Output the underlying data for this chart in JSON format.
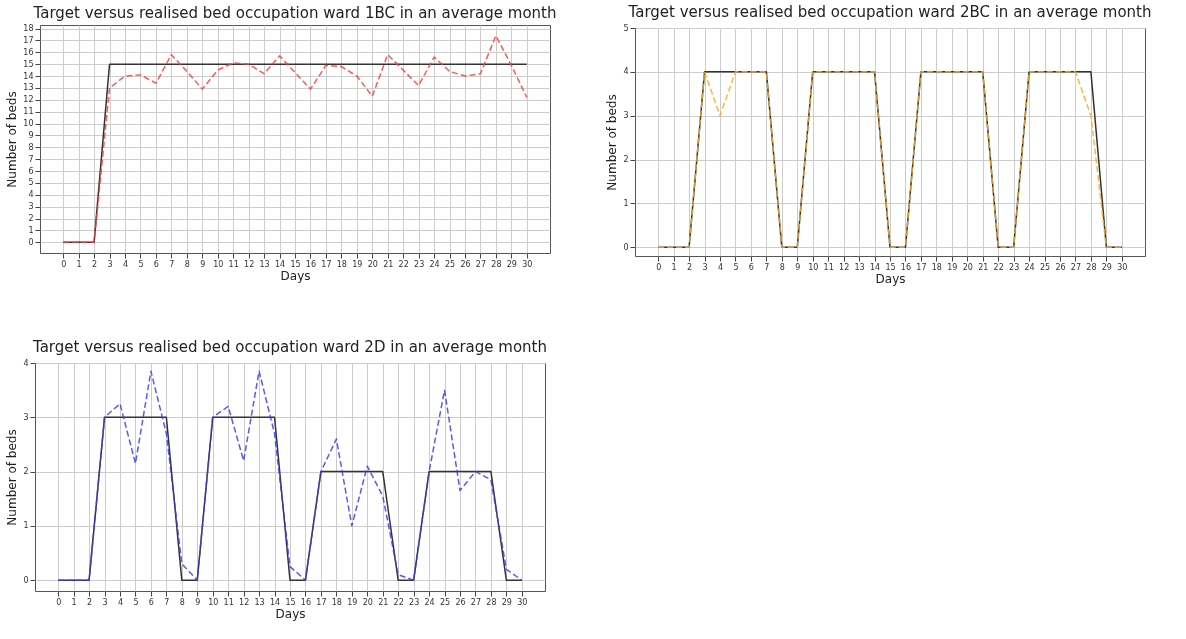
{
  "chart_data": [
    {
      "type": "line",
      "title": "Target versus realised bed occupation ward 1BC in an average month",
      "xlabel": "Days",
      "ylabel": "Number of beds",
      "x": [
        0,
        1,
        2,
        3,
        4,
        5,
        6,
        7,
        8,
        9,
        10,
        11,
        12,
        13,
        14,
        15,
        16,
        17,
        18,
        19,
        20,
        21,
        22,
        23,
        24,
        25,
        26,
        27,
        28,
        29,
        30
      ],
      "series": [
        {
          "color": "#333333",
          "line_style": "solid",
          "values": [
            0,
            0,
            0,
            15,
            15,
            15,
            15,
            15,
            15,
            15,
            15,
            15,
            15,
            15,
            15,
            15,
            15,
            15,
            15,
            15,
            15,
            15,
            15,
            15,
            15,
            15,
            15,
            15,
            15,
            15,
            15
          ]
        },
        {
          "color": "#ff3b3b",
          "line_style": "dashed",
          "values": [
            0,
            0,
            0,
            13.0,
            14.0,
            14.1,
            13.4,
            15.8,
            14.4,
            12.9,
            14.5,
            15.1,
            15.0,
            14.2,
            15.7,
            14.3,
            12.9,
            14.9,
            14.8,
            14.0,
            12.3,
            15.8,
            14.5,
            13.2,
            15.6,
            14.4,
            14.0,
            14.2,
            17.4,
            14.9,
            12.2
          ]
        }
      ],
      "xlim": [
        -1.5,
        31.5
      ],
      "xticks": [
        0,
        1,
        2,
        3,
        4,
        5,
        6,
        7,
        8,
        9,
        10,
        11,
        12,
        13,
        14,
        15,
        16,
        17,
        18,
        19,
        20,
        21,
        22,
        23,
        24,
        25,
        26,
        27,
        28,
        29,
        30
      ],
      "ylim": [
        -0.9,
        18.3
      ],
      "yticks": [
        0,
        1,
        2,
        3,
        4,
        5,
        6,
        7,
        8,
        9,
        10,
        11,
        12,
        13,
        14,
        15,
        16,
        17,
        18
      ],
      "grid": true
    },
    {
      "type": "line",
      "title": "Target versus realised bed occupation ward 2BC in an average month",
      "xlabel": "Days",
      "ylabel": "Number of beds",
      "x": [
        0,
        1,
        2,
        3,
        4,
        5,
        6,
        7,
        8,
        9,
        10,
        11,
        12,
        13,
        14,
        15,
        16,
        17,
        18,
        19,
        20,
        21,
        22,
        23,
        24,
        25,
        26,
        27,
        28,
        29,
        30
      ],
      "series": [
        {
          "color": "#333333",
          "line_style": "solid",
          "values": [
            0,
            0,
            0,
            4,
            4,
            4,
            4,
            4,
            0,
            0,
            4,
            4,
            4,
            4,
            4,
            0,
            0,
            4,
            4,
            4,
            4,
            4,
            0,
            0,
            4,
            4,
            4,
            4,
            4,
            0,
            0
          ]
        },
        {
          "color": "#ffa91f",
          "line_style": "dashed",
          "values": [
            0,
            0,
            0,
            4,
            3,
            4,
            4,
            4,
            0,
            0,
            4,
            4,
            4,
            4,
            4,
            0,
            0,
            4,
            4,
            4,
            4,
            4,
            0,
            0,
            4,
            4,
            4,
            4,
            3,
            0,
            0
          ]
        }
      ],
      "xlim": [
        -1.5,
        31.5
      ],
      "xticks": [
        0,
        1,
        2,
        3,
        4,
        5,
        6,
        7,
        8,
        9,
        10,
        11,
        12,
        13,
        14,
        15,
        16,
        17,
        18,
        19,
        20,
        21,
        22,
        23,
        24,
        25,
        26,
        27,
        28,
        29,
        30
      ],
      "ylim": [
        -0.2,
        5
      ],
      "yticks": [
        0,
        1,
        2,
        3,
        4,
        5
      ],
      "grid": true
    },
    {
      "type": "line",
      "title": "Target versus realised bed occupation ward 2D in an average month",
      "xlabel": "Days",
      "ylabel": "Number of beds",
      "x": [
        0,
        1,
        2,
        3,
        4,
        5,
        6,
        7,
        8,
        9,
        10,
        11,
        12,
        13,
        14,
        15,
        16,
        17,
        18,
        19,
        20,
        21,
        22,
        23,
        24,
        25,
        26,
        27,
        28,
        29,
        30
      ],
      "series": [
        {
          "color": "#333333",
          "line_style": "solid",
          "values": [
            0,
            0,
            0,
            3,
            3,
            3,
            3,
            3,
            0,
            0,
            3,
            3,
            3,
            3,
            3,
            0,
            0,
            2,
            2,
            2,
            2,
            2,
            0,
            0,
            2,
            2,
            2,
            2,
            2,
            0,
            0
          ]
        },
        {
          "color": "#3b3bff",
          "line_style": "dashed",
          "values": [
            0,
            0,
            0,
            3.0,
            3.25,
            2.15,
            3.85,
            2.7,
            0.3,
            0,
            3.0,
            3.2,
            2.2,
            3.85,
            2.7,
            0.25,
            0,
            2.0,
            2.6,
            1.0,
            2.1,
            1.55,
            0.1,
            0,
            2.0,
            3.5,
            1.65,
            2.0,
            1.85,
            0.2,
            0
          ]
        }
      ],
      "xlim": [
        -1.5,
        31.5
      ],
      "xticks": [
        0,
        1,
        2,
        3,
        4,
        5,
        6,
        7,
        8,
        9,
        10,
        11,
        12,
        13,
        14,
        15,
        16,
        17,
        18,
        19,
        20,
        21,
        22,
        23,
        24,
        25,
        26,
        27,
        28,
        29,
        30
      ],
      "ylim": [
        -0.2,
        4
      ],
      "yticks": [
        0,
        1,
        2,
        3,
        4
      ],
      "grid": true
    }
  ]
}
